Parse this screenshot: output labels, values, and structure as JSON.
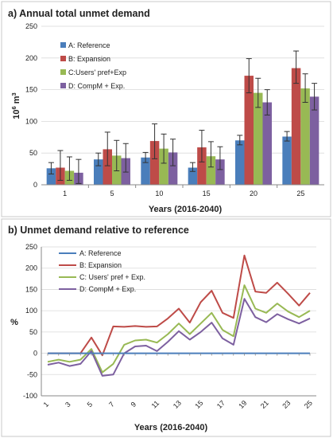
{
  "chart_data": [
    {
      "type": "bar",
      "title": "a) Annual total unmet demand",
      "ylabel_base": "10",
      "ylabel_sup": "6",
      "ylabel_unit": " m",
      "ylabel_sup2": "3",
      "xlabel": "Years (2016-2040)",
      "ylim": [
        0,
        250
      ],
      "yticks": [
        0,
        50,
        100,
        150,
        200,
        250
      ],
      "grid": true,
      "legend_position": "top-left",
      "categories": [
        "1",
        "5",
        "10",
        "15",
        "20",
        "25"
      ],
      "series": [
        {
          "name": "A: Reference",
          "color": "#4a7ebb",
          "values": [
            26,
            40,
            43,
            27,
            70,
            76
          ],
          "err_low": [
            17,
            30,
            35,
            21,
            63,
            69
          ],
          "err_high": [
            35,
            50,
            51,
            35,
            78,
            84
          ]
        },
        {
          "name": "B: Expansion",
          "color": "#be4b48",
          "values": [
            27,
            56,
            69,
            59,
            172,
            184
          ],
          "err_low": [
            7,
            30,
            41,
            36,
            145,
            160
          ],
          "err_high": [
            54,
            83,
            96,
            86,
            199,
            211
          ]
        },
        {
          "name": "C:Users' pref+Exp",
          "color": "#98b954",
          "values": [
            22,
            46,
            57,
            45,
            145,
            152
          ],
          "err_low": [
            7,
            22,
            34,
            28,
            122,
            130
          ],
          "err_high": [
            44,
            70,
            80,
            68,
            168,
            175
          ]
        },
        {
          "name": "D: CompM + Exp.",
          "color": "#7d60a0",
          "values": [
            19,
            42,
            51,
            40,
            130,
            139
          ],
          "err_low": [
            2,
            20,
            30,
            24,
            110,
            118
          ],
          "err_high": [
            40,
            65,
            72,
            60,
            150,
            160
          ]
        }
      ]
    },
    {
      "type": "line",
      "title": "b) Unmet demand relative to reference",
      "ylabel": "%",
      "xlabel": "Years (2016-2040)",
      "ylim": [
        -100,
        250
      ],
      "yticks": [
        -100,
        -50,
        0,
        50,
        100,
        150,
        200,
        250
      ],
      "grid": true,
      "legend_position": "top-left",
      "x": [
        1,
        2,
        3,
        4,
        5,
        6,
        7,
        8,
        9,
        10,
        11,
        12,
        13,
        14,
        15,
        16,
        17,
        18,
        19,
        20,
        21,
        22,
        23,
        24,
        25
      ],
      "xticks": [
        1,
        3,
        5,
        7,
        9,
        11,
        13,
        15,
        17,
        19,
        21,
        23,
        25
      ],
      "series": [
        {
          "name": "A: Reference",
          "color": "#4a7ebb",
          "values": [
            0,
            0,
            0,
            0,
            0,
            0,
            0,
            0,
            0,
            0,
            0,
            0,
            0,
            0,
            0,
            0,
            0,
            0,
            0,
            0,
            0,
            0,
            0,
            0,
            0
          ]
        },
        {
          "name": "B: Expansion",
          "color": "#be4b48",
          "values": [
            0,
            0,
            0,
            0,
            37,
            -5,
            63,
            62,
            64,
            62,
            63,
            82,
            105,
            72,
            120,
            147,
            95,
            83,
            230,
            145,
            142,
            166,
            140,
            112,
            142
          ]
        },
        {
          "name": "C: Users' pref + Exp.",
          "color": "#98b954",
          "values": [
            -20,
            -15,
            -20,
            -15,
            10,
            -45,
            -25,
            20,
            30,
            32,
            25,
            45,
            70,
            45,
            70,
            95,
            55,
            40,
            160,
            105,
            95,
            117,
            98,
            85,
            100
          ]
        },
        {
          "name": "D: CompM + Exp.",
          "color": "#7d60a0",
          "values": [
            -27,
            -22,
            -30,
            -25,
            5,
            -53,
            -50,
            0,
            16,
            18,
            5,
            27,
            52,
            32,
            50,
            72,
            35,
            20,
            128,
            85,
            73,
            92,
            80,
            70,
            82
          ]
        }
      ]
    }
  ]
}
